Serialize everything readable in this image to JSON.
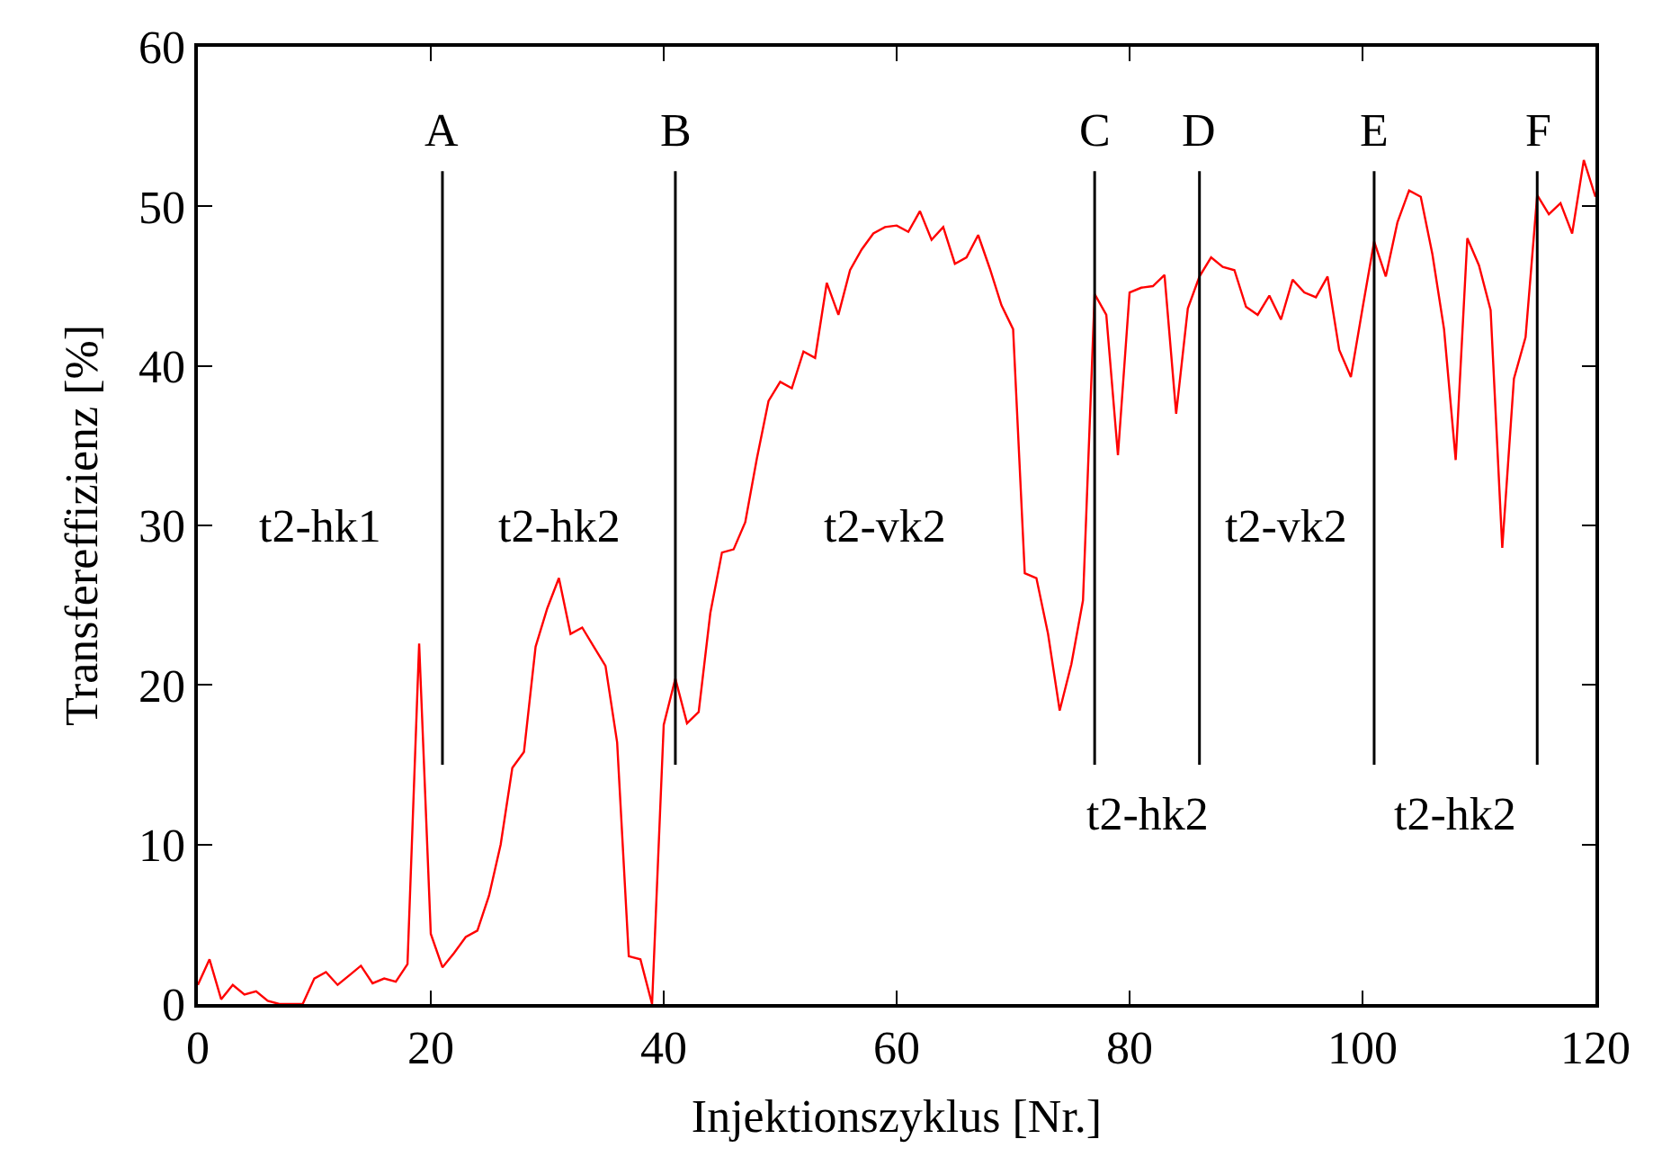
{
  "chart_data": {
    "type": "line",
    "xlabel": "Injektionszyklus [Nr.]",
    "ylabel": "Transfereffizienz [%]",
    "x": [
      0,
      1,
      2,
      3,
      4,
      5,
      6,
      7,
      8,
      9,
      10,
      11,
      12,
      13,
      14,
      15,
      16,
      17,
      18,
      19,
      20,
      21,
      22,
      23,
      24,
      25,
      26,
      27,
      28,
      29,
      30,
      31,
      32,
      33,
      34,
      35,
      36,
      37,
      38,
      39,
      40,
      41,
      42,
      43,
      44,
      45,
      46,
      47,
      48,
      49,
      50,
      51,
      52,
      53,
      54,
      55,
      56,
      57,
      58,
      59,
      60,
      61,
      62,
      63,
      64,
      65,
      66,
      67,
      68,
      69,
      70,
      71,
      72,
      73,
      74,
      75,
      76,
      77,
      78,
      79,
      80,
      81,
      82,
      83,
      84,
      85,
      86,
      87,
      88,
      89,
      90,
      91,
      92,
      93,
      94,
      95,
      96,
      97,
      98,
      99,
      100,
      101,
      102,
      103,
      104,
      105,
      106,
      107,
      108,
      109,
      110,
      111,
      112,
      113,
      114,
      115,
      116,
      117,
      118,
      119,
      120
    ],
    "series": [
      {
        "color": "#ff0000",
        "values": [
          1.2,
          2.8,
          0.3,
          1.2,
          0.6,
          0.8,
          0.2,
          0,
          0,
          0,
          1.6,
          2,
          1.2,
          1.8,
          2.4,
          1.3,
          1.6,
          1.4,
          2.5,
          22.6,
          4.4,
          2.3,
          3.2,
          4.2,
          4.6,
          6.8,
          10,
          14.8,
          15.8,
          22.4,
          24.8,
          26.7,
          23.2,
          23.6,
          22.4,
          21.2,
          16.4,
          3,
          2.8,
          0,
          17.5,
          20.4,
          17.6,
          18.3,
          24.5,
          28.3,
          28.5,
          30.2,
          34.2,
          37.8,
          39,
          38.6,
          40.9,
          40.5,
          45.2,
          43.2,
          46,
          47.3,
          48.3,
          48.7,
          48.8,
          48.4,
          49.7,
          47.9,
          48.7,
          46.4,
          46.8,
          48.2,
          46.1,
          43.8,
          42.3,
          27,
          26.7,
          23.2,
          18.4,
          21.3,
          25.3,
          44.5,
          43.2,
          34.4,
          44.6,
          44.9,
          45,
          45.7,
          37,
          43.6,
          45.6,
          46.8,
          46.2,
          46,
          43.7,
          43.2,
          44.4,
          42.9,
          45.4,
          44.6,
          44.3,
          45.6,
          41,
          39.3,
          43.6,
          47.8,
          45.6,
          49,
          51,
          50.6,
          47,
          42.3,
          34.1,
          48,
          46.3,
          43.5,
          28.6,
          39.2,
          41.8,
          50.7,
          49.5,
          50.2,
          48.3,
          52.9,
          50.6
        ]
      }
    ],
    "xlim": [
      0,
      120
    ],
    "xticks": [
      0,
      20,
      40,
      60,
      80,
      100,
      120
    ],
    "ylim": [
      0,
      60
    ],
    "yticks": [
      0,
      10,
      20,
      30,
      40,
      50,
      60
    ],
    "marker": "none",
    "line_style": "solid",
    "ref_lines": [
      {
        "axis": "x",
        "value": 21,
        "label": "A",
        "color": "#000000"
      },
      {
        "axis": "x",
        "value": 41,
        "label": "B",
        "color": "#000000"
      },
      {
        "axis": "x",
        "value": 77,
        "label": "C",
        "color": "#000000"
      },
      {
        "axis": "x",
        "value": 86,
        "label": "D",
        "color": "#000000"
      },
      {
        "axis": "x",
        "value": 101,
        "label": "E",
        "color": "#000000"
      },
      {
        "axis": "x",
        "value": 115,
        "label": "F",
        "color": "#000000"
      }
    ],
    "annotations": [
      "t2-hk1",
      "t2-hk2",
      "t2-vk2",
      "t2-vk2",
      "t2-hk2",
      "t2-hk2"
    ]
  }
}
